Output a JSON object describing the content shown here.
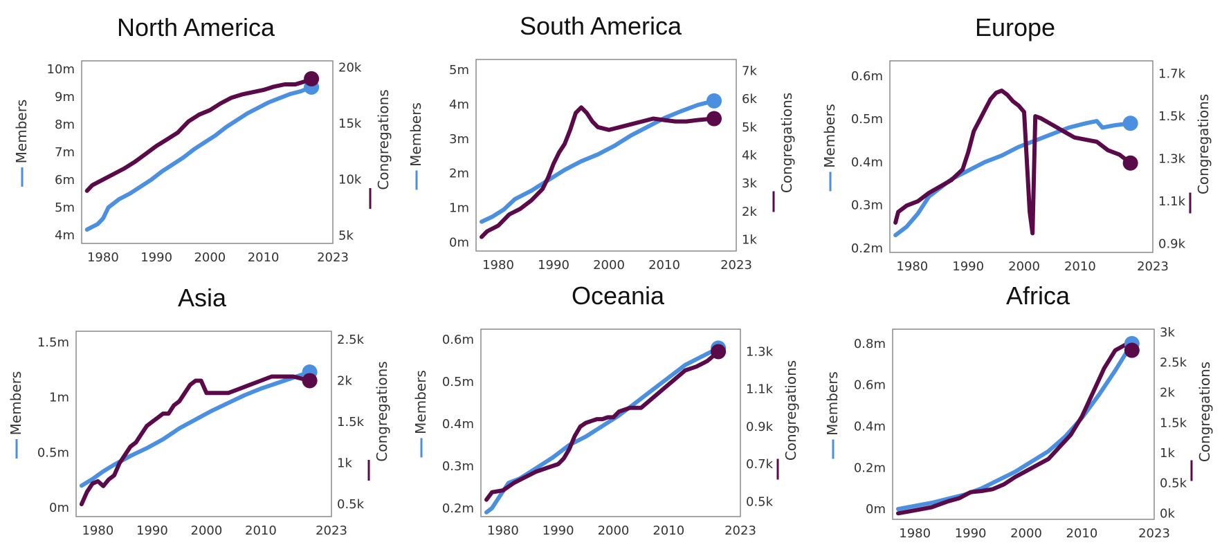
{
  "colors": {
    "members": "#4a8fe0",
    "congregations": "#5a0a48"
  },
  "chart_data": [
    {
      "type": "line",
      "title": "North America",
      "ylabel": "Members",
      "y2label": "Congregations",
      "xlim": [
        1976,
        2023
      ],
      "x_ticks": [
        1980,
        1990,
        2000,
        2010,
        2023
      ],
      "ylim": [
        3.7,
        10.3
      ],
      "y_ticks": [
        4,
        5,
        6,
        7,
        8,
        9,
        10
      ],
      "y_tick_labels": [
        "4m",
        "5m",
        "6m",
        "7m",
        "8m",
        "9m",
        "10m"
      ],
      "y2lim": [
        4300,
        20600
      ],
      "y2_ticks": [
        5000,
        10000,
        15000,
        20000
      ],
      "y2_tick_labels": [
        "5k",
        "10k",
        "15k",
        "20k"
      ],
      "series": [
        {
          "name": "Members",
          "axis": "left",
          "x": [
            1977,
            1979,
            1980,
            1981,
            1983,
            1985,
            1987,
            1989,
            1991,
            1993,
            1995,
            1997,
            1999,
            2001,
            2003,
            2005,
            2007,
            2009,
            2011,
            2013,
            2015,
            2017,
            2019
          ],
          "values": [
            4.2,
            4.4,
            4.6,
            5.0,
            5.3,
            5.5,
            5.75,
            6.0,
            6.3,
            6.55,
            6.8,
            7.1,
            7.35,
            7.6,
            7.9,
            8.15,
            8.4,
            8.6,
            8.8,
            8.95,
            9.1,
            9.2,
            9.35
          ]
        },
        {
          "name": "Congregations",
          "axis": "right",
          "x": [
            1977,
            1978,
            1980,
            1982,
            1984,
            1986,
            1988,
            1990,
            1992,
            1994,
            1995,
            1996,
            1998,
            2000,
            2002,
            2004,
            2006,
            2008,
            2010,
            2012,
            2014,
            2016,
            2018,
            2019
          ],
          "values": [
            9000,
            9500,
            10000,
            10500,
            11000,
            11600,
            12300,
            13000,
            13600,
            14200,
            14700,
            15200,
            15800,
            16200,
            16800,
            17300,
            17600,
            17800,
            18000,
            18300,
            18500,
            18500,
            18800,
            19000
          ]
        }
      ]
    },
    {
      "type": "line",
      "title": "South America",
      "ylabel": "Members",
      "y2label": "Congregations",
      "xlim": [
        1976,
        2023
      ],
      "x_ticks": [
        1980,
        1990,
        2000,
        2010,
        2023
      ],
      "ylim": [
        -0.25,
        5.3
      ],
      "y_ticks": [
        0,
        1,
        2,
        3,
        4,
        5
      ],
      "y_tick_labels": [
        "0m",
        "1m",
        "2m",
        "3m",
        "4m",
        "5m"
      ],
      "y2lim": [
        600,
        7400
      ],
      "y2_ticks": [
        1000,
        2000,
        3000,
        4000,
        5000,
        6000,
        7000
      ],
      "y2_tick_labels": [
        "1k",
        "2k",
        "3k",
        "4k",
        "5k",
        "6k",
        "7k"
      ],
      "series": [
        {
          "name": "Members",
          "axis": "left",
          "x": [
            1977,
            1979,
            1981,
            1983,
            1986,
            1989,
            1992,
            1995,
            1998,
            2001,
            2004,
            2007,
            2010,
            2013,
            2016,
            2019
          ],
          "values": [
            0.6,
            0.75,
            0.95,
            1.25,
            1.5,
            1.8,
            2.1,
            2.35,
            2.55,
            2.8,
            3.1,
            3.35,
            3.6,
            3.8,
            3.98,
            4.1
          ]
        },
        {
          "name": "Congregations",
          "axis": "right",
          "x": [
            1977,
            1978,
            1980,
            1982,
            1984,
            1986,
            1988,
            1989,
            1990,
            1991,
            1992,
            1993,
            1994,
            1995,
            1996,
            1997,
            1998,
            2000,
            2002,
            2004,
            2006,
            2008,
            2010,
            2012,
            2014,
            2016,
            2019
          ],
          "values": [
            1100,
            1300,
            1500,
            1900,
            2100,
            2400,
            2800,
            3200,
            3700,
            4100,
            4400,
            4900,
            5500,
            5700,
            5500,
            5200,
            5000,
            4900,
            5000,
            5100,
            5200,
            5300,
            5250,
            5200,
            5200,
            5250,
            5300
          ]
        }
      ]
    },
    {
      "type": "line",
      "title": "Europe",
      "ylabel": "Members",
      "y2label": "Congregations",
      "xlim": [
        1976,
        2023
      ],
      "x_ticks": [
        1980,
        1990,
        2000,
        2010,
        2023
      ],
      "ylim": [
        0.19,
        0.635
      ],
      "y_ticks": [
        0.2,
        0.3,
        0.4,
        0.5,
        0.6
      ],
      "y_tick_labels": [
        "0.2m",
        "0.3m",
        "0.4m",
        "0.5m",
        "0.6m"
      ],
      "y2lim": [
        0.86,
        1.76
      ],
      "y2_ticks": [
        0.9,
        1.1,
        1.3,
        1.5,
        1.7
      ],
      "y2_tick_labels": [
        "0.9k",
        "1.1k",
        "1.3k",
        "1.5k",
        "1.7k"
      ],
      "series": [
        {
          "name": "Members",
          "axis": "left",
          "x": [
            1977,
            1979,
            1981,
            1983,
            1985,
            1987,
            1990,
            1993,
            1996,
            1999,
            2002,
            2005,
            2008,
            2011,
            2013,
            2014,
            2016,
            2019
          ],
          "values": [
            0.23,
            0.25,
            0.28,
            0.32,
            0.34,
            0.36,
            0.38,
            0.4,
            0.415,
            0.435,
            0.45,
            0.465,
            0.48,
            0.49,
            0.495,
            0.48,
            0.485,
            0.49
          ]
        },
        {
          "name": "Congregations",
          "axis": "right",
          "x": [
            1977,
            1977.5,
            1979,
            1981,
            1983,
            1985,
            1987,
            1989,
            1990,
            1991,
            1992,
            1993,
            1994,
            1995,
            1996,
            1997,
            1998,
            1999,
            2000,
            2001,
            2001.5,
            2002,
            2003,
            2005,
            2007,
            2009,
            2011,
            2013,
            2015,
            2017,
            2019
          ],
          "values": [
            1.0,
            1.05,
            1.08,
            1.1,
            1.14,
            1.17,
            1.2,
            1.25,
            1.33,
            1.43,
            1.48,
            1.53,
            1.58,
            1.61,
            1.62,
            1.6,
            1.57,
            1.55,
            1.52,
            1.05,
            0.95,
            1.5,
            1.49,
            1.46,
            1.43,
            1.4,
            1.39,
            1.38,
            1.34,
            1.32,
            1.28
          ]
        }
      ]
    },
    {
      "type": "line",
      "title": "Asia",
      "ylabel": "Members",
      "y2label": "Congregations",
      "xlim": [
        1976,
        2023
      ],
      "x_ticks": [
        1980,
        1990,
        2000,
        2010,
        2023
      ],
      "ylim": [
        -0.08,
        1.6
      ],
      "y_ticks": [
        0,
        0.5,
        1,
        1.5
      ],
      "y_tick_labels": [
        "0m",
        "0.5m",
        "1m",
        "1.5m"
      ],
      "y2lim": [
        0.35,
        2.6
      ],
      "y2_ticks": [
        0.5,
        1.0,
        1.5,
        2.0,
        2.5
      ],
      "y2_tick_labels": [
        "0.5k",
        "1k",
        "1.5k",
        "2k",
        "2.5k"
      ],
      "series": [
        {
          "name": "Members",
          "axis": "left",
          "x": [
            1977,
            1979,
            1981,
            1983,
            1986,
            1989,
            1992,
            1995,
            1998,
            2001,
            2004,
            2007,
            2010,
            2013,
            2016,
            2019
          ],
          "values": [
            0.2,
            0.26,
            0.33,
            0.39,
            0.47,
            0.54,
            0.62,
            0.72,
            0.8,
            0.88,
            0.95,
            1.02,
            1.08,
            1.13,
            1.18,
            1.23
          ]
        },
        {
          "name": "Congregations",
          "axis": "right",
          "x": [
            1977,
            1978,
            1979,
            1980,
            1981,
            1982,
            1983,
            1984,
            1985,
            1986,
            1987,
            1988,
            1989,
            1990,
            1991,
            1992,
            1993,
            1994,
            1995,
            1996,
            1997,
            1998,
            1999,
            2000,
            2002,
            2004,
            2006,
            2008,
            2010,
            2012,
            2014,
            2016,
            2019
          ],
          "values": [
            0.5,
            0.65,
            0.75,
            0.78,
            0.72,
            0.8,
            0.85,
            1.0,
            1.1,
            1.2,
            1.25,
            1.35,
            1.45,
            1.5,
            1.55,
            1.6,
            1.6,
            1.7,
            1.75,
            1.85,
            1.95,
            2.0,
            2.0,
            1.85,
            1.85,
            1.85,
            1.9,
            1.95,
            2.0,
            2.05,
            2.05,
            2.05,
            2.0
          ]
        }
      ]
    },
    {
      "type": "line",
      "title": "Oceania",
      "ylabel": "Members",
      "y2label": "Congregations",
      "xlim": [
        1976,
        2023
      ],
      "x_ticks": [
        1980,
        1990,
        2000,
        2010,
        2023
      ],
      "ylim": [
        0.18,
        0.625
      ],
      "y_ticks": [
        0.2,
        0.3,
        0.4,
        0.5,
        0.6
      ],
      "y_tick_labels": [
        "0.2m",
        "0.3m",
        "0.4m",
        "0.5m",
        "0.6m"
      ],
      "y2lim": [
        0.42,
        1.42
      ],
      "y2_ticks": [
        0.5,
        0.7,
        0.9,
        1.1,
        1.3
      ],
      "y2_tick_labels": [
        "0.5k",
        "0.7k",
        "0.9k",
        "1.1k",
        "1.3k"
      ],
      "series": [
        {
          "name": "Members",
          "axis": "left",
          "x": [
            1977,
            1978,
            1979,
            1980,
            1981,
            1983,
            1986,
            1989,
            1992,
            1995,
            1998,
            2001,
            2004,
            2007,
            2010,
            2013,
            2016,
            2019
          ],
          "values": [
            0.19,
            0.2,
            0.22,
            0.24,
            0.26,
            0.27,
            0.295,
            0.32,
            0.35,
            0.37,
            0.395,
            0.42,
            0.45,
            0.48,
            0.51,
            0.54,
            0.56,
            0.58
          ]
        },
        {
          "name": "Congregations",
          "axis": "right",
          "x": [
            1977,
            1978,
            1980,
            1982,
            1984,
            1986,
            1988,
            1990,
            1991,
            1992,
            1993,
            1994,
            1995,
            1996,
            1997,
            1998,
            1999,
            2000,
            2001,
            2002,
            2003,
            2005,
            2007,
            2009,
            2011,
            2013,
            2015,
            2017,
            2019
          ],
          "values": [
            0.51,
            0.55,
            0.56,
            0.6,
            0.63,
            0.66,
            0.68,
            0.7,
            0.73,
            0.78,
            0.85,
            0.9,
            0.92,
            0.93,
            0.94,
            0.94,
            0.95,
            0.95,
            0.98,
            0.99,
            1.0,
            1.0,
            1.05,
            1.1,
            1.15,
            1.2,
            1.22,
            1.25,
            1.3
          ]
        }
      ]
    },
    {
      "type": "line",
      "title": "Africa",
      "ylabel": "Members",
      "y2label": "Congregations",
      "xlim": [
        1976,
        2023
      ],
      "x_ticks": [
        1980,
        1990,
        2000,
        2010,
        2023
      ],
      "ylim": [
        -0.05,
        0.87
      ],
      "y_ticks": [
        0,
        0.2,
        0.4,
        0.6,
        0.8
      ],
      "y_tick_labels": [
        "0m",
        "0.2m",
        "0.4m",
        "0.6m",
        "0.8m"
      ],
      "y2lim": [
        -0.1,
        3.05
      ],
      "y2_ticks": [
        0,
        0.5,
        1.0,
        1.5,
        2.0,
        2.5,
        3.0
      ],
      "y2_tick_labels": [
        "0k",
        "0.5k",
        "1k",
        "1.5k",
        "2k",
        "2.5k",
        "3k"
      ],
      "series": [
        {
          "name": "Members",
          "axis": "left",
          "x": [
            1977,
            1980,
            1983,
            1986,
            1989,
            1992,
            1995,
            1998,
            2001,
            2004,
            2007,
            2010,
            2013,
            2016,
            2019
          ],
          "values": [
            0.0,
            0.015,
            0.03,
            0.05,
            0.07,
            0.1,
            0.14,
            0.18,
            0.23,
            0.28,
            0.35,
            0.44,
            0.55,
            0.67,
            0.8
          ]
        },
        {
          "name": "Congregations",
          "axis": "right",
          "x": [
            1977,
            1980,
            1983,
            1986,
            1988,
            1990,
            1992,
            1994,
            1996,
            1998,
            2000,
            2002,
            2004,
            2006,
            2008,
            2010,
            2012,
            2014,
            2016,
            2018,
            2019
          ],
          "values": [
            0.0,
            0.05,
            0.1,
            0.2,
            0.25,
            0.35,
            0.37,
            0.4,
            0.48,
            0.6,
            0.7,
            0.8,
            0.9,
            1.1,
            1.3,
            1.6,
            2.0,
            2.4,
            2.7,
            2.8,
            2.7
          ]
        }
      ]
    }
  ]
}
